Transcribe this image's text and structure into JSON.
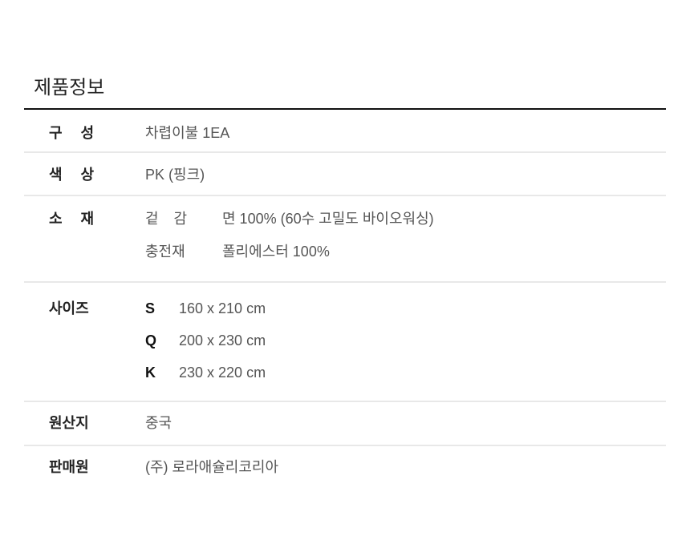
{
  "title": "제품정보",
  "rows": {
    "composition": {
      "label": "구 성",
      "value": "차렵이불 1EA"
    },
    "color": {
      "label": "색 상",
      "value": "PK (핑크)"
    },
    "material": {
      "label": "소 재",
      "outer_label": "겉 감",
      "outer_value": "면 100% (60수 고밀도 바이오워싱)",
      "filling_label": "충전재",
      "filling_value": "폴리에스터 100%"
    },
    "size": {
      "label": "사이즈",
      "items": [
        {
          "code": "S",
          "dim": "160 x 210 cm"
        },
        {
          "code": "Q",
          "dim": "200 x 230 cm"
        },
        {
          "code": "K",
          "dim": "230 x 220 cm"
        }
      ]
    },
    "origin": {
      "label": "원산지",
      "value": "중국"
    },
    "seller": {
      "label": "판매원",
      "value": "(주) 로라애슐리코리아"
    }
  }
}
